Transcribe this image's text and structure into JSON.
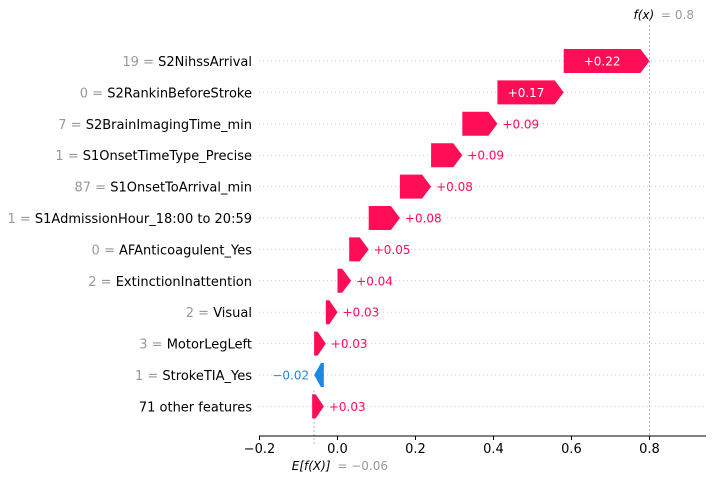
{
  "chart_data": {
    "type": "waterfall",
    "base_value_label": "E[f(X)]",
    "base_value": -0.06,
    "base_value_text": "= −0.06",
    "output_label": "f(x)",
    "output_value": 0.8,
    "output_value_text": "= 0.8",
    "xlim": [
      -0.2,
      0.95
    ],
    "x_ticks": [
      {
        "value": -0.2,
        "label": "−0.2"
      },
      {
        "value": 0.0,
        "label": "0.0"
      },
      {
        "value": 0.2,
        "label": "0.2"
      },
      {
        "value": 0.4,
        "label": "0.4"
      },
      {
        "value": 0.6,
        "label": "0.6"
      },
      {
        "value": 0.8,
        "label": "0.8"
      }
    ],
    "features": [
      {
        "value": "19",
        "name": "S2NihssArrival",
        "start": 0.58,
        "end": 0.8,
        "contribution_text": "+0.22"
      },
      {
        "value": "0",
        "name": "S2RankinBeforeStroke",
        "start": 0.41,
        "end": 0.58,
        "contribution_text": "+0.17"
      },
      {
        "value": "7",
        "name": "S2BrainImagingTime_min",
        "start": 0.32,
        "end": 0.41,
        "contribution_text": "+0.09"
      },
      {
        "value": "1",
        "name": "S1OnsetTimeType_Precise",
        "start": 0.24,
        "end": 0.32,
        "contribution_text": "+0.09"
      },
      {
        "value": "87",
        "name": "S1OnsetToArrival_min",
        "start": 0.16,
        "end": 0.24,
        "contribution_text": "+0.08"
      },
      {
        "value": "1",
        "name": "S1AdmissionHour_18:00 to 20:59",
        "start": 0.08,
        "end": 0.16,
        "contribution_text": "+0.08"
      },
      {
        "value": "0",
        "name": "AFAnticoagulent_Yes",
        "start": 0.03,
        "end": 0.08,
        "contribution_text": "+0.05"
      },
      {
        "value": "2",
        "name": "ExtinctionInattention",
        "start": 0.0,
        "end": 0.035,
        "contribution_text": "+0.04"
      },
      {
        "value": "2",
        "name": "Visual",
        "start": -0.03,
        "end": 0.0,
        "contribution_text": "+0.03"
      },
      {
        "value": "3",
        "name": "MotorLegLeft",
        "start": -0.06,
        "end": -0.03,
        "contribution_text": "+0.03"
      },
      {
        "value": "1",
        "name": "StrokeTIA_Yes",
        "start": -0.035,
        "end": -0.06,
        "contribution_text": "−0.02"
      },
      {
        "value": "",
        "name": "71 other features",
        "start": -0.065,
        "end": -0.035,
        "contribution_text": "+0.03"
      }
    ],
    "colors": {
      "positive": "#ff0d57",
      "negative": "#1e88e5",
      "grid": "#cccccc"
    }
  }
}
